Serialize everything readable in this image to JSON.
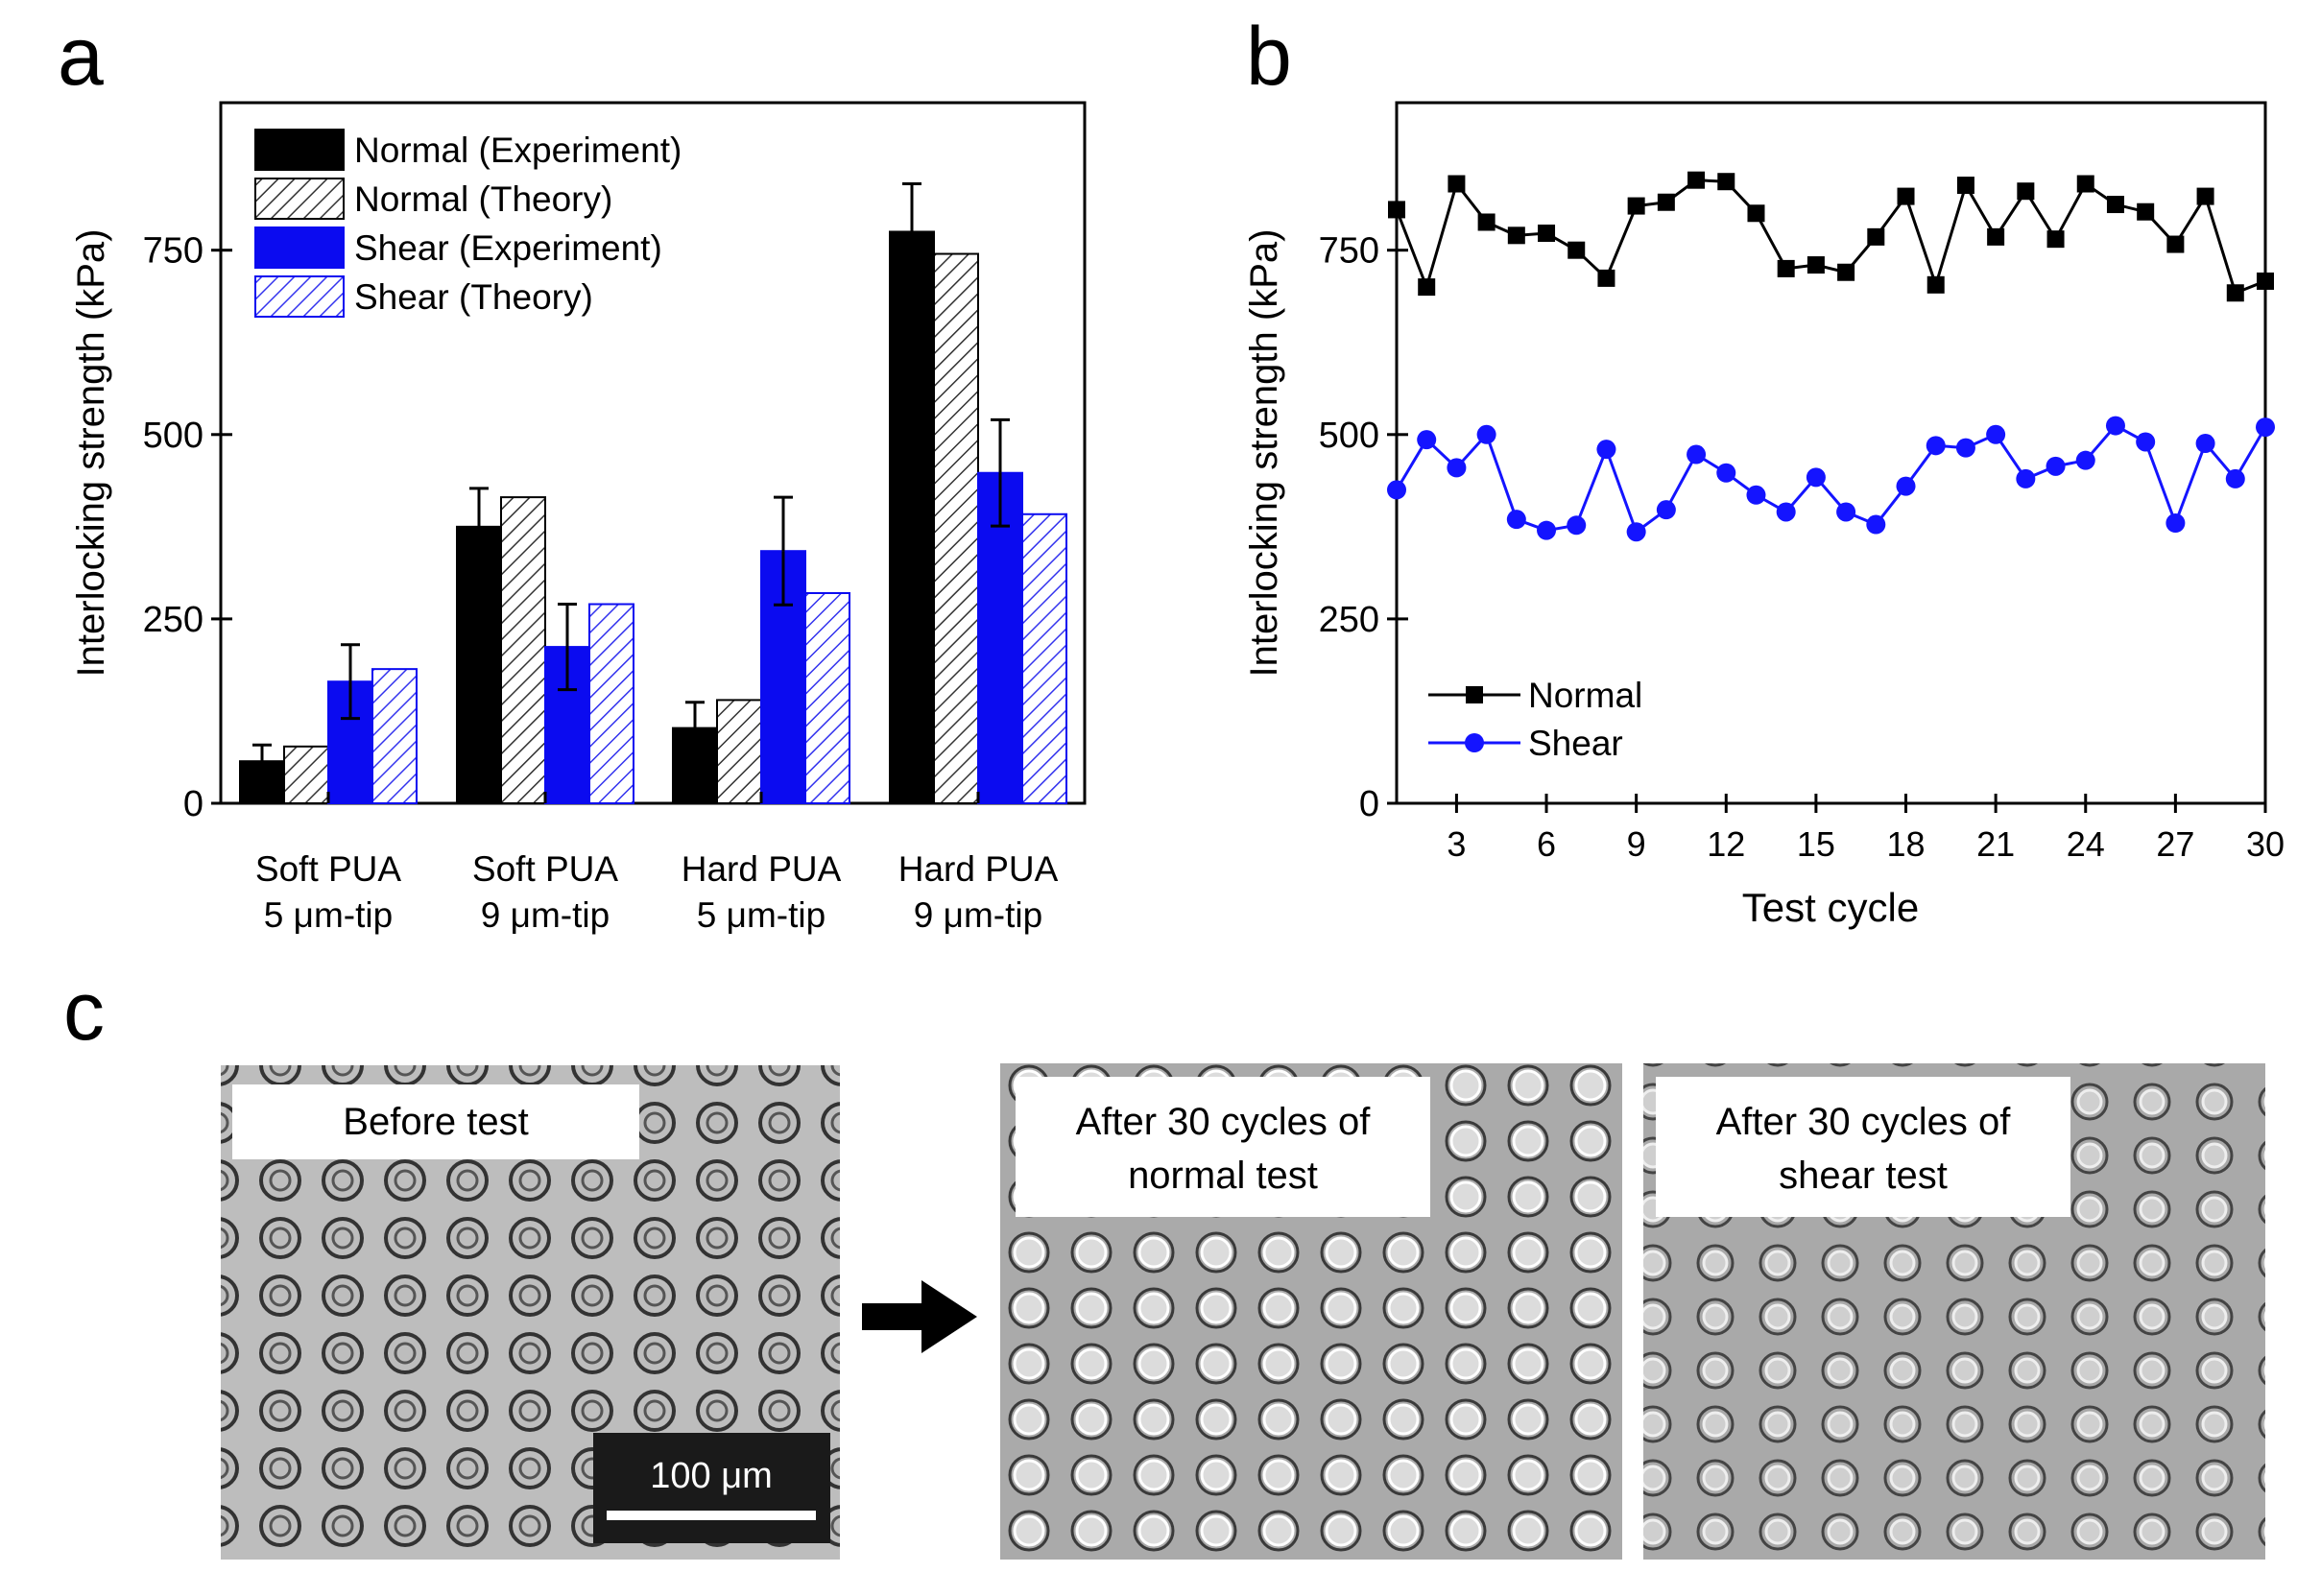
{
  "panel_labels": {
    "a": "a",
    "b": "b",
    "c": "c"
  },
  "colors": {
    "experiment_normal": "#000000",
    "experiment_shear": "#0b0bf0",
    "theory_hatch_normal": "#222222",
    "theory_hatch_shear": "#2a2ae8",
    "series_normal": "#000000",
    "series_shear": "#1414ff"
  },
  "chart_data": [
    {
      "type": "bar",
      "panel": "a",
      "title": "",
      "xlabel": "",
      "ylabel": "Interlocking strength (kPa)",
      "ylim": [
        0,
        950
      ],
      "yticks": [
        0,
        250,
        500,
        750
      ],
      "categories": [
        {
          "line1": "Soft PUA",
          "line2": "5 μm-tip"
        },
        {
          "line1": "Soft PUA",
          "line2": "9 μm-tip"
        },
        {
          "line1": "Hard PUA",
          "line2": "5 μm-tip"
        },
        {
          "line1": "Hard PUA",
          "line2": "9 μm-tip"
        }
      ],
      "series": [
        {
          "name": "Normal (Experiment)",
          "style": "solid-black",
          "values": [
            57,
            375,
            102,
            775
          ],
          "errors": [
            22,
            52,
            35,
            65
          ]
        },
        {
          "name": "Normal (Theory)",
          "style": "hatch-black",
          "values": [
            77,
            415,
            140,
            745
          ],
          "errors": null
        },
        {
          "name": "Shear (Experiment)",
          "style": "solid-blue",
          "values": [
            165,
            212,
            342,
            448
          ],
          "errors": [
            50,
            58,
            73,
            72
          ]
        },
        {
          "name": "Shear (Theory)",
          "style": "hatch-blue",
          "values": [
            182,
            270,
            285,
            392
          ],
          "errors": null
        }
      ],
      "legend_position": "top-left"
    },
    {
      "type": "line",
      "panel": "b",
      "title": "",
      "xlabel": "Test cycle",
      "ylabel": "Interlocking strength (kPa)",
      "xlim": [
        1,
        30
      ],
      "ylim": [
        0,
        950
      ],
      "xticks": [
        3,
        6,
        9,
        12,
        15,
        18,
        21,
        24,
        27,
        30
      ],
      "yticks": [
        0,
        250,
        500,
        750
      ],
      "x": [
        1,
        2,
        3,
        4,
        5,
        6,
        7,
        8,
        9,
        10,
        11,
        12,
        13,
        14,
        15,
        16,
        17,
        18,
        19,
        20,
        21,
        22,
        23,
        24,
        25,
        26,
        27,
        28,
        29,
        30
      ],
      "series": [
        {
          "name": "Normal",
          "marker": "square",
          "values": [
            805,
            700,
            840,
            788,
            770,
            773,
            750,
            712,
            810,
            815,
            845,
            843,
            800,
            725,
            730,
            720,
            768,
            823,
            703,
            838,
            768,
            830,
            765,
            840,
            812,
            802,
            758,
            823,
            692,
            708
          ]
        },
        {
          "name": "Shear",
          "marker": "circle",
          "values": [
            425,
            493,
            455,
            500,
            385,
            370,
            377,
            480,
            368,
            398,
            473,
            448,
            418,
            395,
            442,
            395,
            378,
            430,
            485,
            482,
            500,
            440,
            457,
            465,
            512,
            490,
            380,
            488,
            440,
            510
          ]
        }
      ],
      "legend_position": "bottom-left"
    }
  ],
  "micrographs": {
    "before": {
      "caption_line1": "Before test",
      "caption_line2": "",
      "scale_bar_label": "100 μm"
    },
    "after_normal": {
      "caption_line1": "After 30 cycles of",
      "caption_line2": "normal test"
    },
    "after_shear": {
      "caption_line1": "After 30 cycles of",
      "caption_line2": "shear test"
    }
  }
}
